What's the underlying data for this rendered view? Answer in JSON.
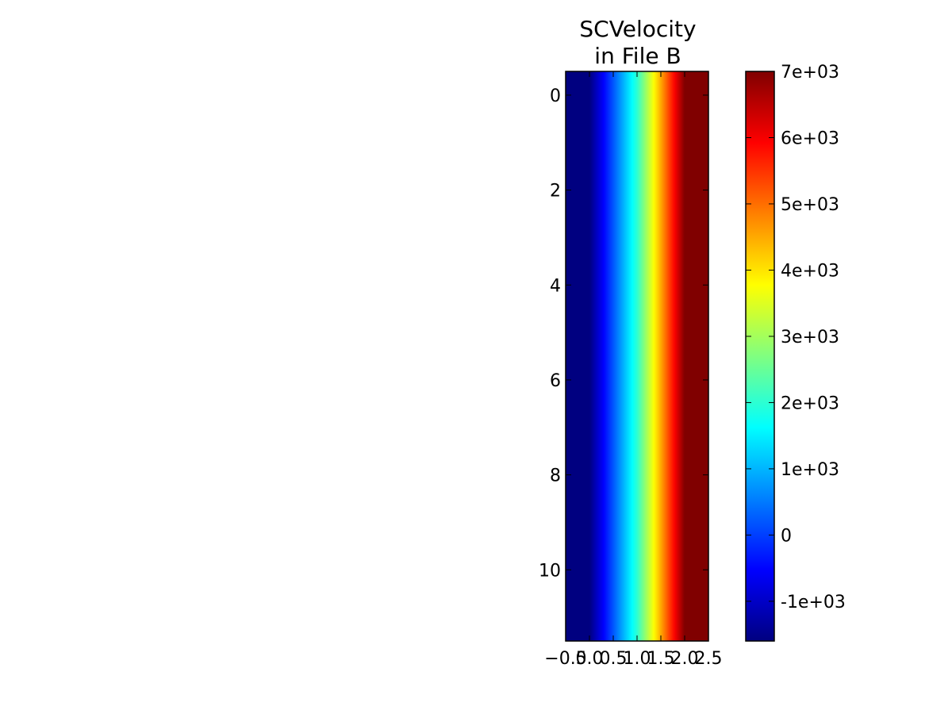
{
  "chart_data": {
    "type": "heatmap",
    "title": "SCVelocity\nin File B",
    "xlabel": "",
    "ylabel": "",
    "x_ticks": [
      "−0.5",
      "0.0",
      "0.5",
      "1.0",
      "1.5",
      "2.0",
      "2.5"
    ],
    "x_tick_values": [
      -0.5,
      0.0,
      0.5,
      1.0,
      1.5,
      2.0,
      2.5
    ],
    "y_ticks": [
      "0",
      "2",
      "4",
      "6",
      "8",
      "10"
    ],
    "y_tick_values": [
      0,
      2,
      4,
      6,
      8,
      10
    ],
    "xlim": [
      -0.5,
      2.5
    ],
    "ylim": [
      11.5,
      -0.5
    ],
    "columns_x": [
      0,
      1,
      2
    ],
    "column_values": [
      -1600,
      2000,
      7000
    ],
    "rows": 12,
    "interpolation": "smooth",
    "colormap": "jet",
    "colorbar": {
      "vmin": -1600,
      "vmax": 7000,
      "ticks": [
        "-1e+03",
        "0",
        "1e+03",
        "2e+03",
        "3e+03",
        "4e+03",
        "5e+03",
        "6e+03",
        "7e+03"
      ],
      "tick_values": [
        -1000,
        0,
        1000,
        2000,
        3000,
        4000,
        5000,
        6000,
        7000
      ]
    }
  }
}
